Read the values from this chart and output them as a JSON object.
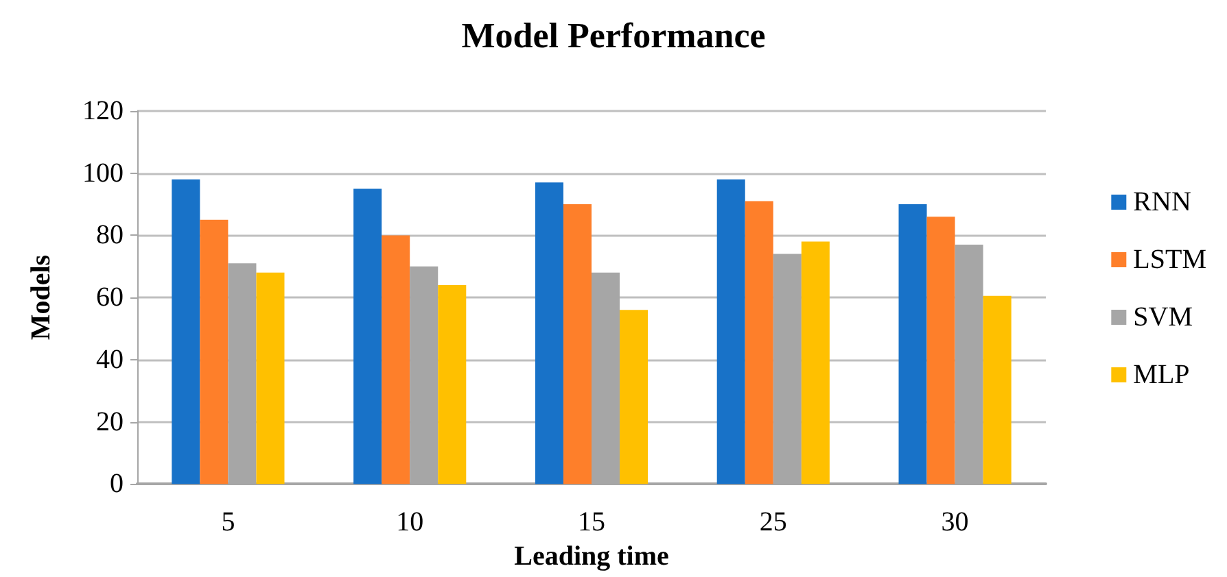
{
  "chart_data": {
    "type": "bar",
    "title": "Model Performance",
    "xlabel": "Leading time",
    "ylabel": "Models",
    "categories": [
      "5",
      "10",
      "15",
      "25",
      "30"
    ],
    "series": [
      {
        "name": "RNN",
        "color": "#1872c8",
        "values": [
          98,
          95,
          97,
          98,
          90
        ]
      },
      {
        "name": "LSTM",
        "color": "#fe7f2a",
        "values": [
          85,
          80,
          90,
          91,
          86
        ]
      },
      {
        "name": "SVM",
        "color": "#a6a6a6",
        "values": [
          71,
          70,
          68,
          74,
          77
        ]
      },
      {
        "name": "MLP",
        "color": "#ffc000",
        "values": [
          68,
          64,
          56,
          78,
          60.5
        ]
      }
    ],
    "ylim": [
      0,
      120
    ],
    "yticks": [
      0,
      20,
      40,
      60,
      80,
      100,
      120
    ],
    "grid": "y",
    "legend": "right"
  }
}
